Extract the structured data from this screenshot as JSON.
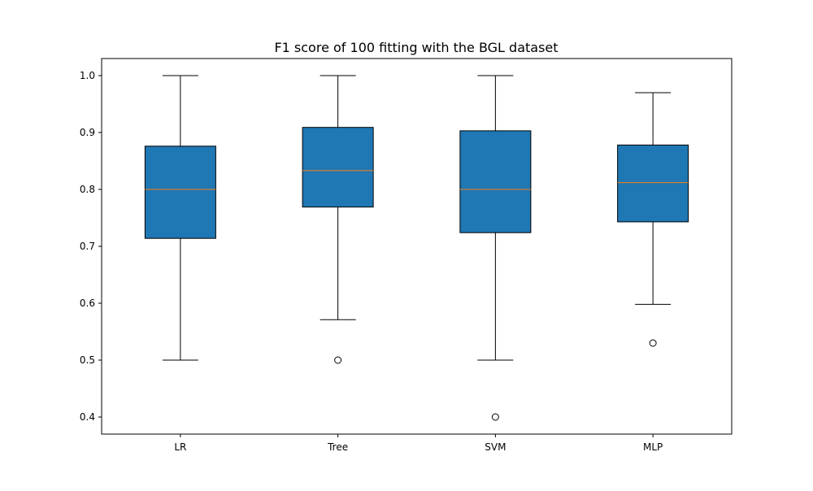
{
  "chart_data": {
    "type": "box",
    "title": "F1 score of 100 fitting with the BGL dataset",
    "xlabel": "",
    "ylabel": "",
    "categories": [
      "LR",
      "Tree",
      "SVM",
      "MLP"
    ],
    "yticks": [
      "0.4",
      "0.5",
      "0.6",
      "0.7",
      "0.8",
      "0.9",
      "1.0"
    ],
    "ylim": [
      0.37,
      1.03
    ],
    "grid": false,
    "box_color": "#1f77b4",
    "median_color": "#ff7f0e",
    "boxes": [
      {
        "category": "LR",
        "whisker_low": 0.5,
        "q1": 0.714,
        "median": 0.8,
        "q3": 0.876,
        "whisker_high": 1.0,
        "outliers": []
      },
      {
        "category": "Tree",
        "whisker_low": 0.571,
        "q1": 0.769,
        "median": 0.833,
        "q3": 0.909,
        "whisker_high": 1.0,
        "outliers": [
          0.5
        ]
      },
      {
        "category": "SVM",
        "whisker_low": 0.5,
        "q1": 0.724,
        "median": 0.8,
        "q3": 0.903,
        "whisker_high": 1.0,
        "outliers": [
          0.4
        ]
      },
      {
        "category": "MLP",
        "whisker_low": 0.598,
        "q1": 0.743,
        "median": 0.812,
        "q3": 0.878,
        "whisker_high": 0.97,
        "outliers": [
          0.53
        ]
      }
    ]
  }
}
